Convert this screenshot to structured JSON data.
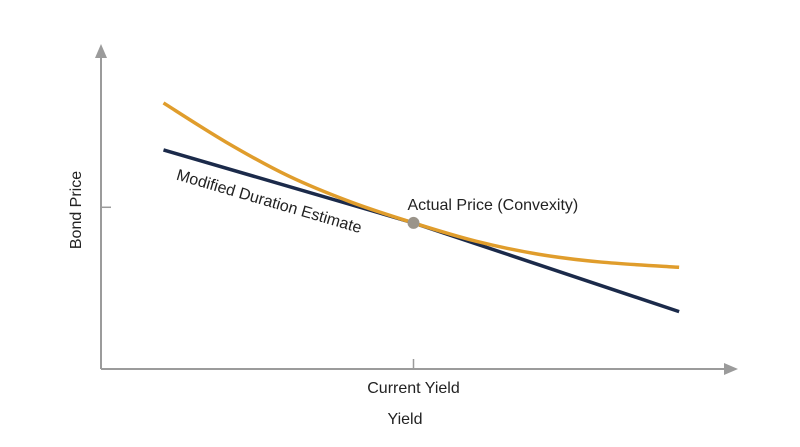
{
  "chart_data": {
    "type": "line",
    "title": "",
    "xlabel": "Yield",
    "ylabel": "Bond Price",
    "x_ticks": [
      {
        "x": 0,
        "label": "Current Yield"
      }
    ],
    "y_ticks": [
      {
        "y": 0,
        "label": ""
      }
    ],
    "xlim": [
      -1,
      1
    ],
    "ylim": [
      -0.62,
      0.58
    ],
    "grid": false,
    "series": [
      {
        "name": "Modified Duration Estimate",
        "color": "#1b2a4a",
        "style": "straight",
        "x": [
          -0.8,
          0,
          0.85
        ],
        "y": [
          0.22,
          -0.06,
          -0.4
        ]
      },
      {
        "name": "Actual Price (Convexity)",
        "color": "#e09d2c",
        "style": "smooth",
        "x": [
          -0.8,
          -0.6,
          -0.4,
          -0.2,
          0,
          0.2,
          0.4,
          0.6,
          0.85
        ],
        "y": [
          0.4,
          0.25,
          0.12,
          0.02,
          -0.06,
          -0.13,
          -0.18,
          -0.21,
          -0.23
        ]
      }
    ],
    "point": {
      "x": 0,
      "y": -0.06,
      "color": "#9a948a"
    },
    "annotations": [
      {
        "text": "Modified Duration Estimate",
        "series": 0
      },
      {
        "text": "Actual Price (Convexity)",
        "series": 1
      }
    ]
  }
}
